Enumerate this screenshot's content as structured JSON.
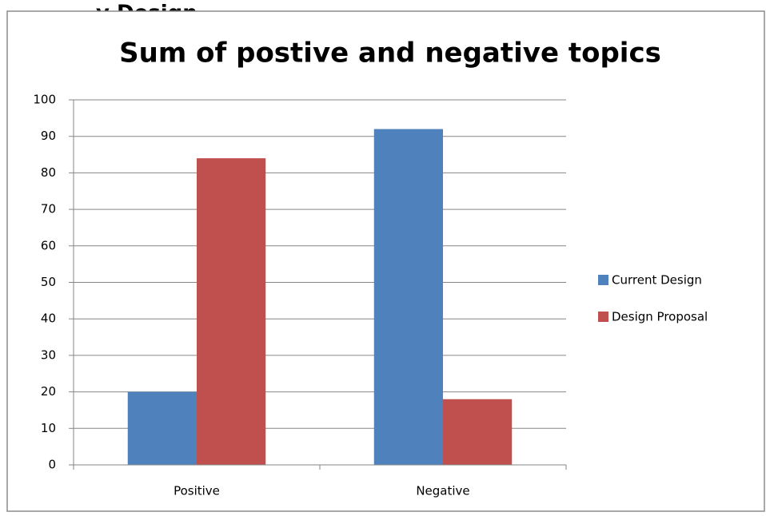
{
  "page": {
    "cropped_header_text": "y Design"
  },
  "chart_data": {
    "type": "bar",
    "title": "Sum of postive and negative topics",
    "categories": [
      "Positive",
      "Negative"
    ],
    "series": [
      {
        "name": "Current Design",
        "values": [
          20,
          92
        ],
        "color": "#4F81BD"
      },
      {
        "name": "Design Proposal",
        "values": [
          84,
          18
        ],
        "color": "#C0504D"
      }
    ],
    "ylim": [
      0,
      100
    ],
    "yticks": [
      0,
      10,
      20,
      30,
      40,
      50,
      60,
      70,
      80,
      90,
      100
    ],
    "grid": true,
    "legend_position": "right"
  }
}
